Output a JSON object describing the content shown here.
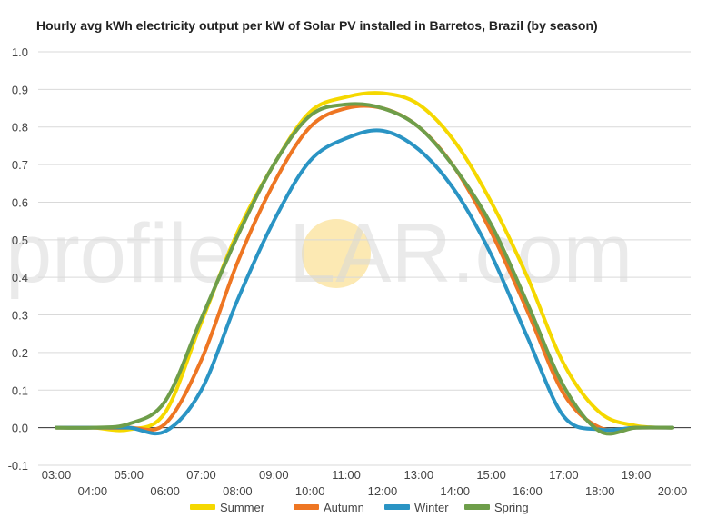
{
  "chart_data": {
    "type": "line",
    "title": "Hourly avg kWh electricity output per kW of Solar PV installed in Barretos, Brazil (by season)",
    "xlabel": "",
    "ylabel": "",
    "x": [
      "03:00",
      "04:00",
      "05:00",
      "06:00",
      "07:00",
      "08:00",
      "09:00",
      "10:00",
      "11:00",
      "12:00",
      "13:00",
      "14:00",
      "15:00",
      "16:00",
      "17:00",
      "18:00",
      "19:00",
      "20:00"
    ],
    "ylim": [
      -0.1,
      1.0
    ],
    "yticks": [
      "-0.1",
      "0.0",
      "0.1",
      "0.2",
      "0.3",
      "0.4",
      "0.5",
      "0.6",
      "0.7",
      "0.8",
      "0.9",
      "1.0"
    ],
    "grid": true,
    "legend_position": "bottom",
    "series": [
      {
        "name": "Summer",
        "color": "#f5d800",
        "values": [
          0,
          0,
          -0.005,
          0.04,
          0.28,
          0.52,
          0.7,
          0.84,
          0.88,
          0.89,
          0.86,
          0.76,
          0.6,
          0.4,
          0.17,
          0.04,
          0.005,
          0
        ]
      },
      {
        "name": "Autumn",
        "color": "#ee7623",
        "values": [
          0,
          0,
          0,
          0.01,
          0.18,
          0.44,
          0.65,
          0.8,
          0.85,
          0.85,
          0.8,
          0.69,
          0.52,
          0.31,
          0.09,
          0,
          0,
          0
        ]
      },
      {
        "name": "Winter",
        "color": "#2a94c4",
        "values": [
          0,
          0,
          0,
          -0.01,
          0.1,
          0.34,
          0.55,
          0.71,
          0.77,
          0.79,
          0.74,
          0.63,
          0.46,
          0.24,
          0.03,
          -0.005,
          0,
          0
        ]
      },
      {
        "name": "Spring",
        "color": "#6e9e4a",
        "values": [
          0,
          0,
          0.01,
          0.07,
          0.29,
          0.51,
          0.7,
          0.83,
          0.86,
          0.85,
          0.8,
          0.69,
          0.54,
          0.33,
          0.11,
          -0.01,
          0,
          0
        ]
      }
    ]
  },
  "watermark": {
    "brand_left": "profile",
    "brand_mid": "S",
    "brand_right": "LAR.com",
    "sun_color": "#fbe3a0"
  }
}
